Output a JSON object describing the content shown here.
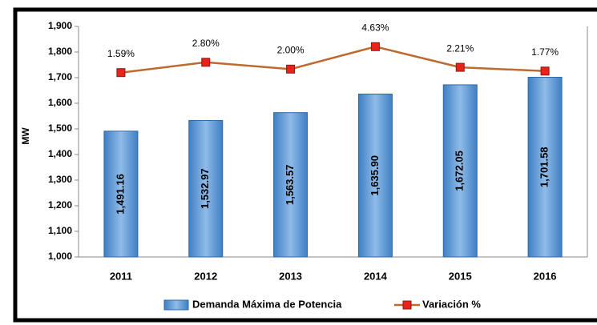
{
  "chart_data": {
    "type": "bar_line",
    "categories": [
      "2011",
      "2012",
      "2013",
      "2014",
      "2015",
      "2016"
    ],
    "y_label": "MW",
    "ylim": [
      1000,
      1900
    ],
    "yticks": [
      {
        "value": 1000,
        "label": "1,000"
      },
      {
        "value": 1100,
        "label": "1,100"
      },
      {
        "value": 1200,
        "label": "1,200"
      },
      {
        "value": 1300,
        "label": "1,300"
      },
      {
        "value": 1400,
        "label": "1,400"
      },
      {
        "value": 1500,
        "label": "1,500"
      },
      {
        "value": 1600,
        "label": "1,600"
      },
      {
        "value": 1700,
        "label": "1,700"
      },
      {
        "value": 1800,
        "label": "1,800"
      },
      {
        "value": 1900,
        "label": "1,900"
      }
    ],
    "y2lim": [
      -20,
      7
    ],
    "series": [
      {
        "name": "Demanda Máxima de Potencia",
        "type": "bar",
        "color": "#5b9bd5",
        "values": [
          1491.16,
          1532.97,
          1563.57,
          1635.9,
          1672.05,
          1701.58
        ],
        "value_labels": [
          "1,491.16",
          "1,532.97",
          "1,563.57",
          "1,635.90",
          "1,672.05",
          "1,701.58"
        ]
      },
      {
        "name": "Variación %",
        "type": "line",
        "axis": "y2",
        "color": "#c0692f",
        "marker_color": "#e8231b",
        "values": [
          1.59,
          2.8,
          2.0,
          4.63,
          2.21,
          1.77
        ],
        "value_labels": [
          "1.59%",
          "2.80%",
          "2.00%",
          "4.63%",
          "2.21%",
          "1.77%"
        ]
      }
    ],
    "legend": "bottom"
  }
}
